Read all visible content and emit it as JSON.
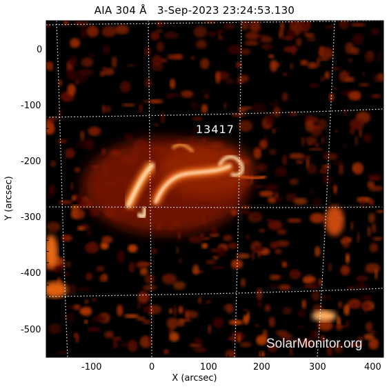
{
  "figure": {
    "title": "AIA 304 Å   3-Sep-2023 23:24:53.130",
    "xlabel": "X (arcsec)",
    "ylabel": "Y (arcsec)",
    "x_ticks": [
      "-100",
      "0",
      "100",
      "200",
      "300",
      "400"
    ],
    "y_ticks": [
      "0",
      "-100",
      "-200",
      "-300",
      "-400",
      "-500"
    ],
    "region_label": "13417",
    "watermark": "SolarMonitor.org",
    "colors": {
      "background": "#000000",
      "plasma_dim": "#5a0a00",
      "plasma_mid": "#c83c00",
      "plasma_bright": "#ffe0b0"
    }
  }
}
